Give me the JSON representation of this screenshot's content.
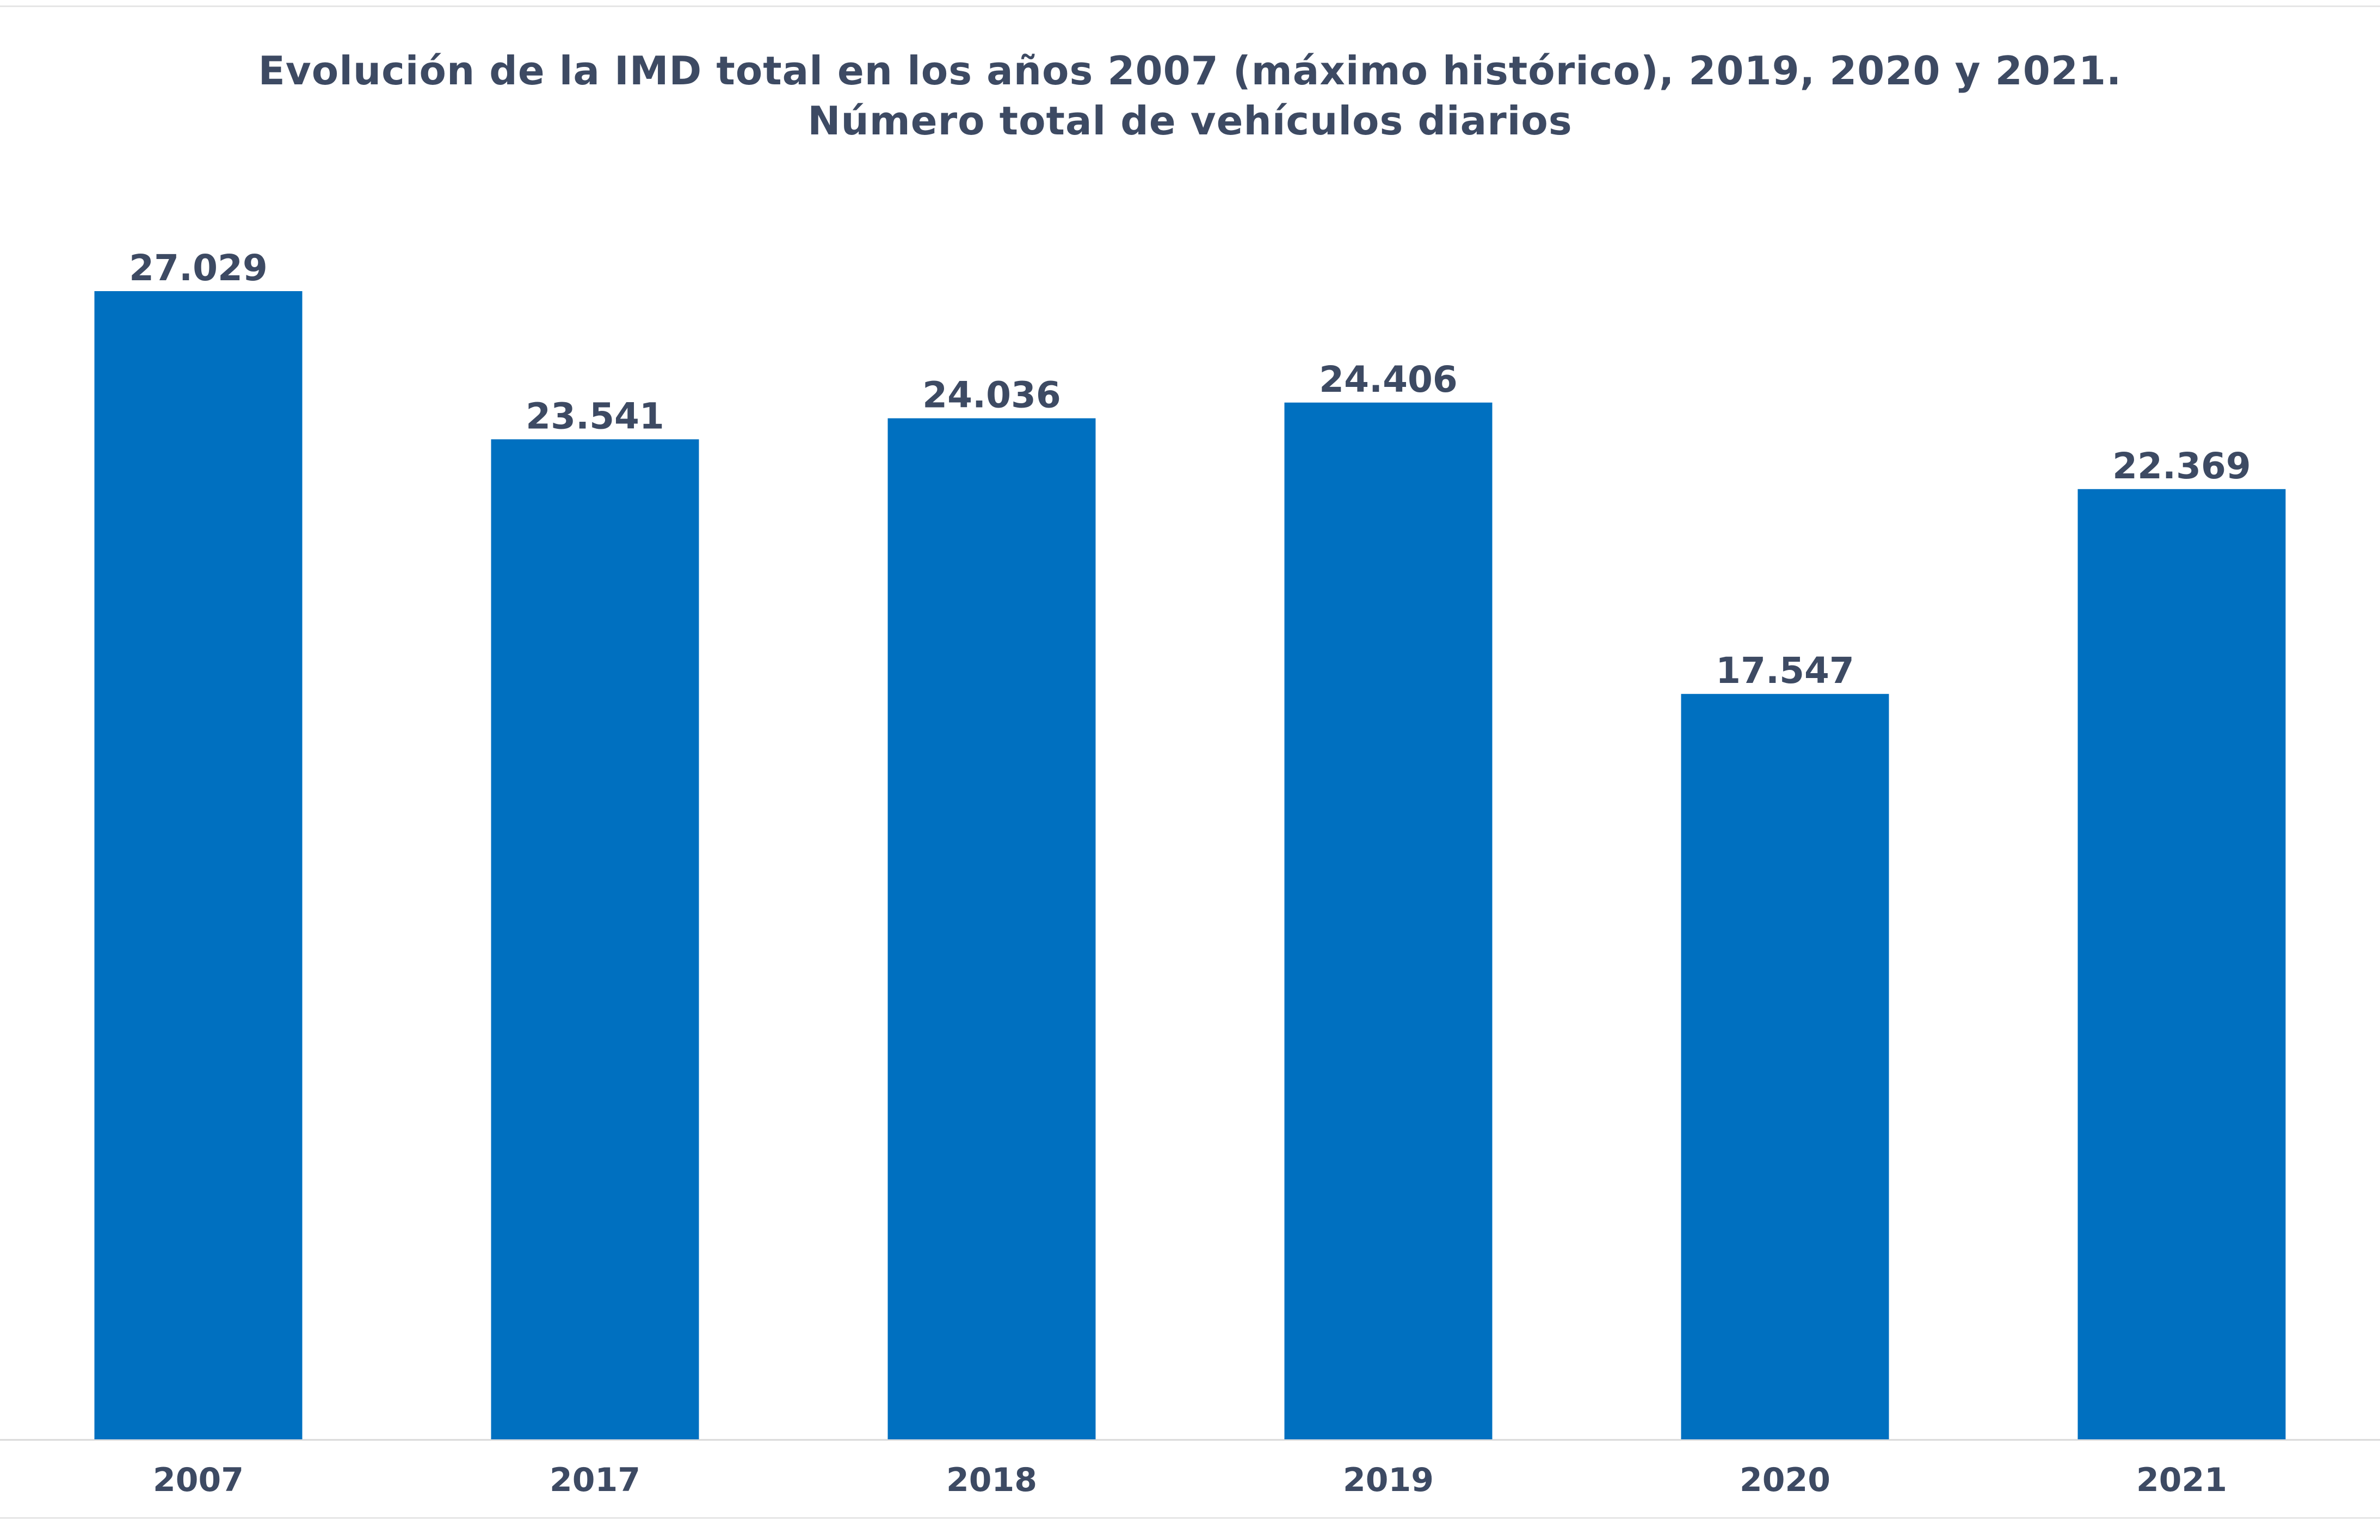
{
  "chart_data": {
    "type": "bar",
    "title": "Evolución de la IMD total en los años 2007 (máximo histórico), 2019, 2020 y 2021.",
    "subtitle": "Número total de vehículos diarios",
    "xlabel": "",
    "ylabel": "",
    "categories": [
      "2007",
      "2017",
      "2018",
      "2019",
      "2020",
      "2021"
    ],
    "values": [
      27029,
      23541,
      24036,
      24406,
      17547,
      22369
    ],
    "data_labels": [
      "27.029",
      "23.541",
      "24.036",
      "24.406",
      "17.547",
      "22.369"
    ],
    "ylim": [
      0,
      30000
    ],
    "grid": false,
    "legend": "none",
    "colors": {
      "bar": "#0070c0",
      "text": "#3d4a63",
      "axis": "#d9d9d9"
    }
  }
}
